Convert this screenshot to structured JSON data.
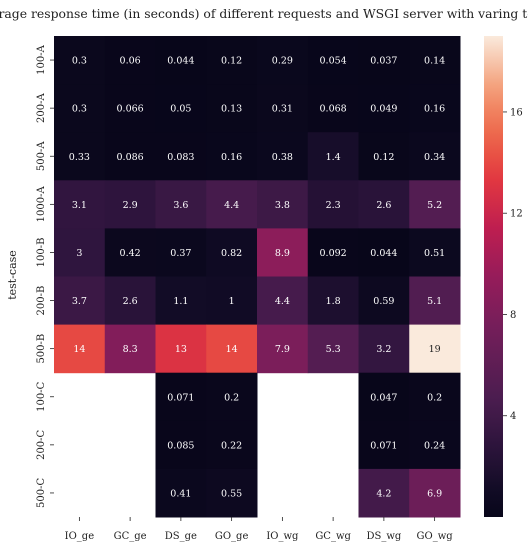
{
  "chart_data": {
    "type": "heatmap",
    "title": "Average response time (in seconds) of different requests and WSGI server with varing tests",
    "xlabel": "",
    "ylabel": "test-case",
    "x_categories": [
      "IO_ge",
      "GC_ge",
      "DS_ge",
      "GO_ge",
      "IO_wg",
      "GC_wg",
      "DS_wg",
      "GO_wg"
    ],
    "y_categories": [
      "100-A",
      "200-A",
      "500-A",
      "1000-A",
      "100-B",
      "200-B",
      "500-B",
      "100-C",
      "200-C",
      "500-C"
    ],
    "values": [
      [
        0.3,
        0.06,
        0.044,
        0.12,
        0.29,
        0.054,
        0.037,
        0.14
      ],
      [
        0.3,
        0.066,
        0.05,
        0.13,
        0.31,
        0.068,
        0.049,
        0.16
      ],
      [
        0.33,
        0.086,
        0.083,
        0.16,
        0.38,
        1.4,
        0.12,
        0.34
      ],
      [
        3.1,
        2.9,
        3.6,
        4.4,
        3.8,
        2.3,
        2.6,
        5.2
      ],
      [
        3,
        0.42,
        0.37,
        0.82,
        8.9,
        0.092,
        0.044,
        0.51
      ],
      [
        3.7,
        2.6,
        1.1,
        1,
        4.4,
        1.8,
        0.59,
        5.1
      ],
      [
        14,
        8.3,
        13,
        14,
        7.9,
        5.3,
        3.2,
        19
      ],
      [
        null,
        null,
        0.071,
        0.2,
        null,
        null,
        0.047,
        0.2
      ],
      [
        null,
        null,
        0.085,
        0.22,
        null,
        null,
        0.071,
        0.24
      ],
      [
        null,
        null,
        0.41,
        0.55,
        null,
        null,
        4.2,
        6.9
      ]
    ],
    "colorbar": {
      "vmin": 0,
      "vmax": 19,
      "ticks": [
        4,
        8,
        12,
        16
      ]
    },
    "colormap": "rocket"
  }
}
